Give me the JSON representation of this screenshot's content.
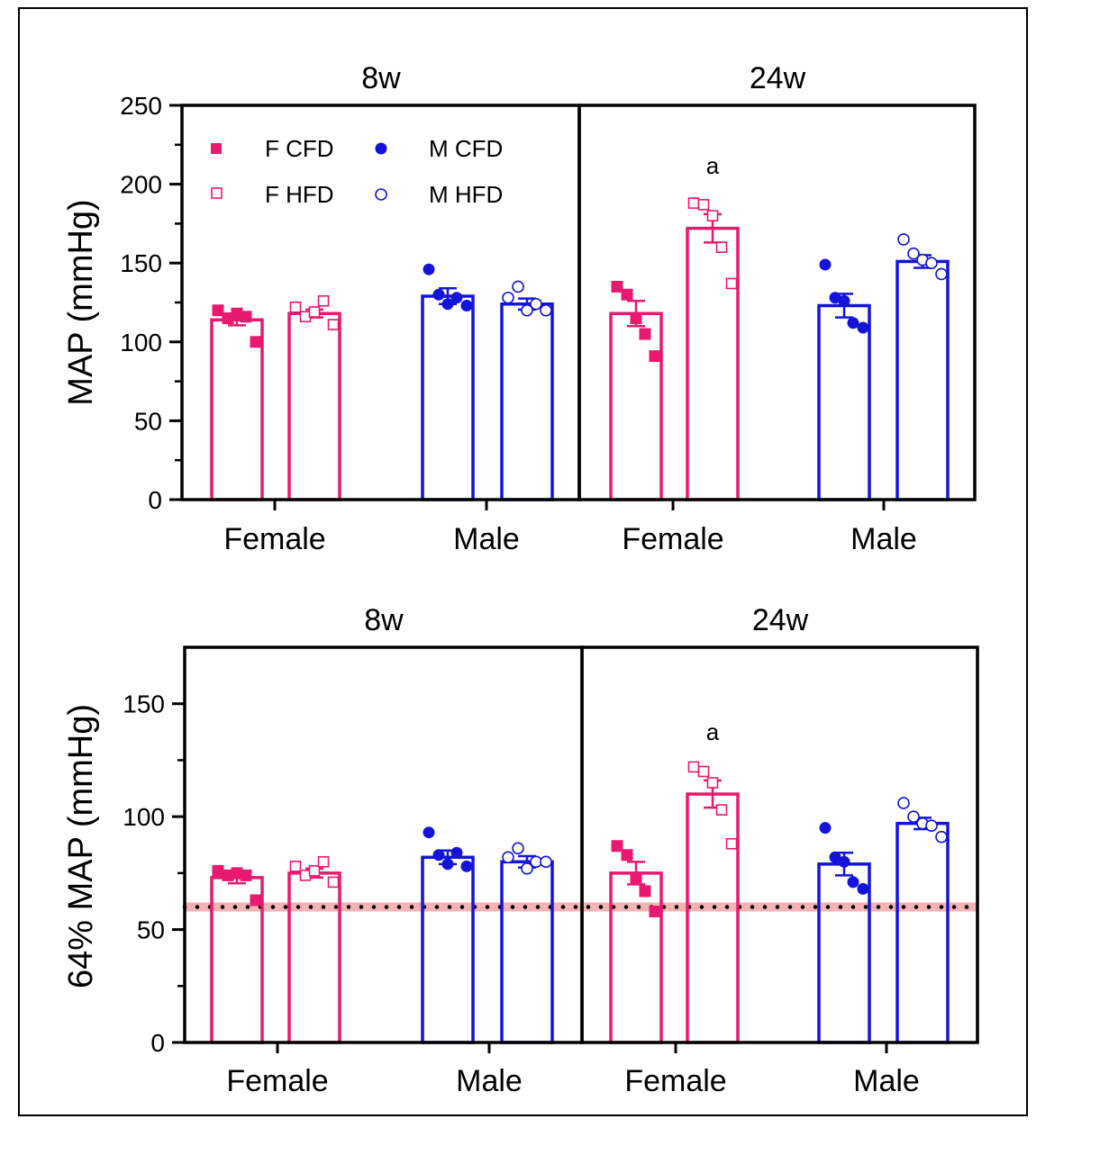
{
  "colors": {
    "female": "#E8196E",
    "male": "#1414D9",
    "threshold_band": "#F4B4B4",
    "axis": "#000000"
  },
  "legend": {
    "placement": "top-left",
    "items": [
      {
        "label": "F CFD",
        "marker": "filled-square",
        "color": "#E8196E"
      },
      {
        "label": "F HFD",
        "marker": "open-square",
        "color": "#E8196E"
      },
      {
        "label": "M CFD",
        "marker": "filled-circle",
        "color": "#1414D9"
      },
      {
        "label": "M HFD",
        "marker": "open-circle",
        "color": "#1414D9"
      }
    ]
  },
  "chart_data": [
    {
      "type": "bar",
      "ylabel": "MAP (mmHg)",
      "ylim": [
        0,
        250
      ],
      "yticks": [
        "0",
        "50",
        "100",
        "150",
        "200",
        "250"
      ],
      "grid": false,
      "panels": [
        {
          "title": "8w",
          "categories": [
            "Female",
            "Male"
          ],
          "groups": [
            {
              "series": "F CFD",
              "mean": 114,
              "sem": 3.5,
              "points": [
                120,
                115,
                118,
                116,
                100
              ],
              "annotation": ""
            },
            {
              "series": "F HFD",
              "mean": 118,
              "sem": 2.5,
              "points": [
                122,
                116,
                119,
                126,
                111
              ],
              "annotation": ""
            },
            {
              "series": "M CFD",
              "mean": 129,
              "sem": 5,
              "points": [
                146,
                130,
                124,
                128,
                123
              ],
              "annotation": ""
            },
            {
              "series": "M HFD",
              "mean": 124,
              "sem": 3.5,
              "points": [
                128,
                135,
                120,
                124,
                120
              ],
              "annotation": ""
            }
          ]
        },
        {
          "title": "24w",
          "categories": [
            "Female",
            "Male"
          ],
          "groups": [
            {
              "series": "F CFD",
              "mean": 118,
              "sem": 8,
              "points": [
                135,
                130,
                115,
                105,
                91
              ],
              "annotation": ""
            },
            {
              "series": "F HFD",
              "mean": 172,
              "sem": 9,
              "points": [
                188,
                187,
                180,
                160,
                137
              ],
              "annotation": "a"
            },
            {
              "series": "M CFD",
              "mean": 123,
              "sem": 7.5,
              "points": [
                149,
                128,
                126,
                112,
                109
              ],
              "annotation": ""
            },
            {
              "series": "M HFD",
              "mean": 151,
              "sem": 4,
              "points": [
                165,
                156,
                152,
                150,
                143
              ],
              "annotation": ""
            }
          ]
        }
      ]
    },
    {
      "type": "bar",
      "ylabel": "64% MAP (mmHg)",
      "ylim": [
        0,
        175
      ],
      "yticks": [
        "0",
        "50",
        "100",
        "150"
      ],
      "grid": false,
      "reference_line": {
        "value": 60,
        "style": "dotted",
        "band": [
          58,
          62
        ]
      },
      "panels": [
        {
          "title": "8w",
          "categories": [
            "Female",
            "Male"
          ],
          "groups": [
            {
              "series": "F CFD",
              "mean": 73,
              "sem": 2.5,
              "points": [
                76,
                74,
                75,
                74,
                63
              ],
              "annotation": ""
            },
            {
              "series": "F HFD",
              "mean": 75,
              "sem": 2,
              "points": [
                78,
                74,
                76,
                80,
                71
              ],
              "annotation": ""
            },
            {
              "series": "M CFD",
              "mean": 82,
              "sem": 3,
              "points": [
                93,
                83,
                79,
                84,
                78
              ],
              "annotation": ""
            },
            {
              "series": "M HFD",
              "mean": 80,
              "sem": 2.5,
              "points": [
                82,
                86,
                77,
                80,
                80
              ],
              "annotation": ""
            }
          ]
        },
        {
          "title": "24w",
          "categories": [
            "Female",
            "Male"
          ],
          "groups": [
            {
              "series": "F CFD",
              "mean": 75,
              "sem": 5,
              "points": [
                87,
                83,
                73,
                67,
                58
              ],
              "annotation": ""
            },
            {
              "series": "F HFD",
              "mean": 110,
              "sem": 6,
              "points": [
                122,
                120,
                115,
                103,
                88
              ],
              "annotation": "a"
            },
            {
              "series": "M CFD",
              "mean": 79,
              "sem": 5,
              "points": [
                95,
                82,
                80,
                71,
                68
              ],
              "annotation": ""
            },
            {
              "series": "M HFD",
              "mean": 97,
              "sem": 2.5,
              "points": [
                106,
                100,
                97,
                96,
                91
              ],
              "annotation": ""
            }
          ]
        }
      ]
    }
  ]
}
